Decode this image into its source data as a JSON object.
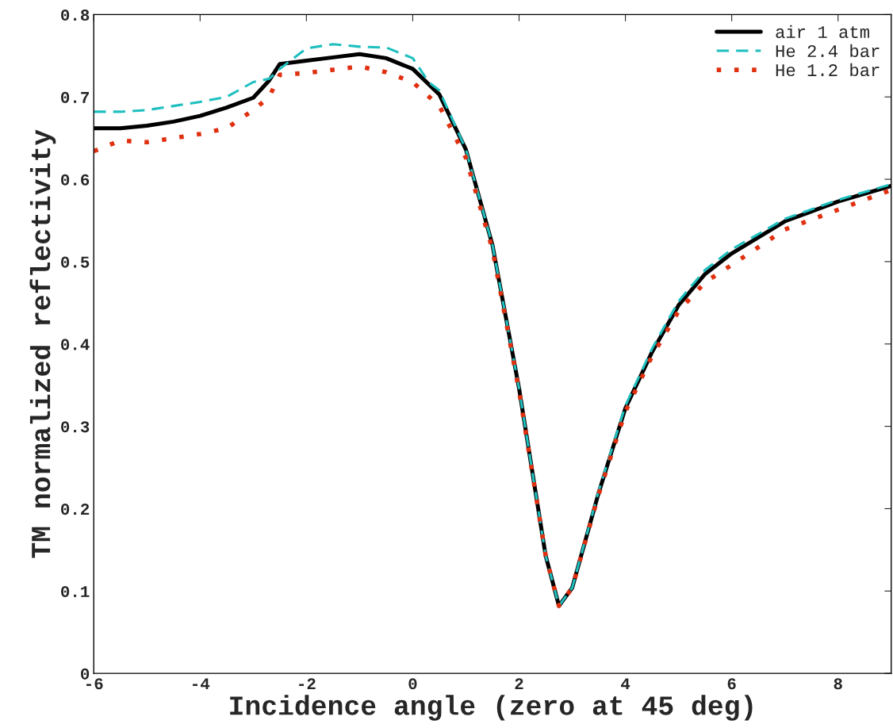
{
  "chart_data": {
    "type": "line",
    "xlabel": "Incidence angle (zero at 45 deg)",
    "ylabel": "TM normalized reflectivity",
    "xlim": [
      -6,
      9
    ],
    "ylim": [
      0,
      0.8
    ],
    "xticks": [
      -6,
      -4,
      -2,
      0,
      2,
      4,
      6,
      8
    ],
    "yticks": [
      0,
      0.1,
      0.2,
      0.3,
      0.4,
      0.5,
      0.6,
      0.7,
      0.8
    ],
    "grid": false,
    "legend": "top right",
    "series": [
      {
        "name": "air 1 atm",
        "color": "#000000",
        "line_style": "solid",
        "x": [
          -6,
          -5.5,
          -5,
          -4.5,
          -4,
          -3.5,
          -3,
          -2.7,
          -2.5,
          -2,
          -1.5,
          -1,
          -0.5,
          0,
          0.5,
          1,
          1.5,
          2,
          2.5,
          2.75,
          3,
          3.5,
          4,
          4.5,
          5,
          5.5,
          6,
          7,
          8,
          9
        ],
        "values": [
          0.662,
          0.662,
          0.665,
          0.67,
          0.677,
          0.687,
          0.699,
          0.72,
          0.74,
          0.744,
          0.748,
          0.752,
          0.747,
          0.734,
          0.703,
          0.636,
          0.52,
          0.346,
          0.143,
          0.082,
          0.104,
          0.22,
          0.322,
          0.39,
          0.447,
          0.485,
          0.51,
          0.549,
          0.573,
          0.592
        ]
      },
      {
        "name": "He 2.4 bar",
        "color": "#1fbfbf",
        "line_style": "dashed",
        "x": [
          -6,
          -5.5,
          -5,
          -4.5,
          -4,
          -3.5,
          -3,
          -2.7,
          -2.5,
          -2,
          -1.5,
          -1,
          -0.5,
          0,
          0.3,
          0.5,
          1,
          1.5,
          2,
          2.5,
          2.75,
          3,
          3.5,
          4,
          4.5,
          5,
          5.5,
          6,
          7,
          8,
          9
        ],
        "values": [
          0.682,
          0.682,
          0.684,
          0.689,
          0.694,
          0.7,
          0.718,
          0.722,
          0.734,
          0.759,
          0.764,
          0.761,
          0.76,
          0.747,
          0.718,
          0.708,
          0.636,
          0.52,
          0.346,
          0.143,
          0.082,
          0.104,
          0.222,
          0.325,
          0.394,
          0.452,
          0.49,
          0.515,
          0.552,
          0.575,
          0.594
        ]
      },
      {
        "name": "He 1.2 bar",
        "color": "#e03010",
        "line_style": "dotted",
        "x": [
          -6,
          -5.5,
          -5,
          -4.5,
          -4,
          -3.5,
          -3,
          -2.7,
          -2.5,
          -2,
          -1.5,
          -1,
          -0.5,
          0,
          0.5,
          1,
          1.5,
          2,
          2.5,
          2.75,
          3,
          3.5,
          4,
          4.5,
          5,
          5.5,
          6,
          7,
          8,
          9
        ],
        "values": [
          0.634,
          0.647,
          0.645,
          0.65,
          0.655,
          0.662,
          0.684,
          0.7,
          0.727,
          0.729,
          0.733,
          0.737,
          0.73,
          0.718,
          0.689,
          0.626,
          0.515,
          0.343,
          0.143,
          0.082,
          0.104,
          0.218,
          0.318,
          0.385,
          0.44,
          0.475,
          0.496,
          0.539,
          0.563,
          0.587
        ]
      }
    ]
  }
}
